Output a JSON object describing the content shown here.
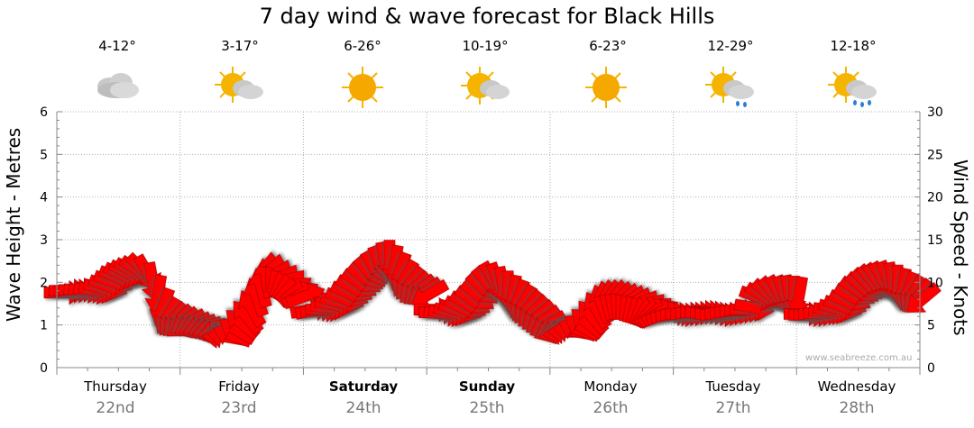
{
  "title": "7 day wind & wave forecast for Black Hills",
  "credit": "www.seabreeze.com.au",
  "colors": {
    "arrow": "#ff0000",
    "arrow_outline": "#b00000",
    "sun": "#f4b400",
    "cloud": "#d0d0d0",
    "rain": "#2a7fd4"
  },
  "days": [
    {
      "day": "Thursday",
      "date": "22nd",
      "temp": "4-12°",
      "icon": "cloudy-icon",
      "bold": false
    },
    {
      "day": "Friday",
      "date": "23rd",
      "temp": "3-17°",
      "icon": "partly-cloudy-icon",
      "bold": false
    },
    {
      "day": "Saturday",
      "date": "24th",
      "temp": "6-26°",
      "icon": "sunny-icon",
      "bold": true
    },
    {
      "day": "Sunday",
      "date": "25th",
      "temp": "10-19°",
      "icon": "partly-cloudy-icon",
      "bold": true
    },
    {
      "day": "Monday",
      "date": "26th",
      "temp": "6-23°",
      "icon": "sunny-icon",
      "bold": false
    },
    {
      "day": "Tuesday",
      "date": "27th",
      "temp": "12-29°",
      "icon": "shower-icon",
      "bold": false
    },
    {
      "day": "Wednesday",
      "date": "28th",
      "temp": "12-18°",
      "icon": "rain-icon",
      "bold": false
    }
  ],
  "chart_data": {
    "type": "line",
    "title": "7 day wind & wave forecast for Black Hills",
    "ylabel": "Wave Height - Metres",
    "y2label": "Wind Speed - Knots",
    "ylim": [
      0,
      6
    ],
    "y2lim": [
      0,
      30
    ],
    "yticks": [
      "0",
      "1",
      "2",
      "3",
      "4",
      "5",
      "6"
    ],
    "y2ticks": [
      "0",
      "5",
      "10",
      "15",
      "20",
      "25",
      "30"
    ],
    "categories": [
      "Thursday 22nd",
      "Friday 23rd",
      "Saturday 24th",
      "Sunday 25th",
      "Monday 26th",
      "Tuesday 27th",
      "Wednesday 28th"
    ],
    "grid": true,
    "series": [
      {
        "kind": "wind-arrows",
        "x_day": [
          0.0,
          0.04,
          0.08,
          0.12,
          0.16,
          0.2,
          0.24,
          0.28,
          0.32,
          0.36,
          0.4,
          0.44,
          0.48,
          0.52,
          0.56,
          0.6,
          0.64,
          0.68,
          0.72,
          0.76,
          0.8,
          0.84,
          0.88,
          0.92,
          0.96,
          1.0,
          1.04,
          1.08,
          1.12,
          1.16,
          1.2,
          1.24,
          1.28,
          1.32,
          1.36,
          1.4,
          1.44,
          1.48,
          1.52,
          1.56,
          1.6,
          1.64,
          1.68,
          1.72,
          1.76,
          1.8,
          1.84,
          1.88,
          1.92,
          1.96,
          2.0,
          2.04,
          2.08,
          2.12,
          2.16,
          2.2,
          2.24,
          2.28,
          2.32,
          2.36,
          2.4,
          2.44,
          2.48,
          2.52,
          2.56,
          2.6,
          2.64,
          2.68,
          2.72,
          2.76,
          2.8,
          2.84,
          2.88,
          2.92,
          2.96,
          3.0,
          3.04,
          3.08,
          3.12,
          3.16,
          3.2,
          3.24,
          3.28,
          3.32,
          3.36,
          3.4,
          3.44,
          3.48,
          3.52,
          3.56,
          3.6,
          3.64,
          3.68,
          3.72,
          3.76,
          3.8,
          3.84,
          3.88,
          3.92,
          3.96,
          4.0,
          4.04,
          4.08,
          4.12,
          4.16,
          4.2,
          4.24,
          4.28,
          4.32,
          4.36,
          4.4,
          4.44,
          4.48,
          4.52,
          4.56,
          4.6,
          4.64,
          4.68,
          4.72,
          4.76,
          4.8,
          4.84,
          4.88,
          4.92,
          4.96,
          5.0,
          5.04,
          5.08,
          5.12,
          5.16,
          5.2,
          5.24,
          5.28,
          5.32,
          5.36,
          5.4,
          5.44,
          5.48,
          5.52,
          5.56,
          5.6,
          5.64,
          5.68,
          5.72,
          5.76,
          5.8,
          5.84,
          5.88,
          5.92,
          5.96,
          6.0,
          6.04,
          6.08,
          6.12,
          6.16,
          6.2,
          6.24,
          6.28,
          6.32,
          6.36,
          6.4,
          6.44,
          6.48,
          6.52,
          6.56,
          6.6,
          6.64,
          6.68,
          6.72,
          6.76,
          6.8,
          6.84,
          6.88,
          6.92,
          6.96
        ],
        "speed_knots": [
          8.8,
          9.0,
          9.0,
          9.1,
          9.0,
          9.0,
          8.9,
          9.0,
          9.2,
          9.5,
          10.0,
          10.5,
          10.8,
          11.0,
          11.2,
          11.3,
          11.4,
          11.0,
          10.0,
          8.5,
          7.0,
          6.0,
          5.6,
          5.4,
          5.2,
          5.2,
          5.0,
          4.9,
          4.8,
          4.6,
          4.4,
          4.2,
          3.7,
          3.6,
          3.8,
          4.4,
          5.2,
          6.0,
          7.0,
          8.3,
          9.4,
          10.5,
          11.2,
          11.0,
          10.4,
          10.0,
          9.6,
          9.0,
          8.6,
          8.4,
          6.8,
          6.7,
          6.7,
          6.8,
          7.0,
          7.3,
          7.6,
          8.0,
          8.6,
          9.2,
          9.8,
          10.4,
          11.0,
          11.5,
          12.0,
          12.4,
          12.6,
          12.0,
          11.2,
          10.4,
          9.8,
          9.3,
          9.0,
          8.8,
          8.6,
          6.8,
          6.5,
          6.3,
          6.3,
          6.4,
          6.6,
          6.9,
          7.3,
          7.8,
          8.4,
          9.2,
          9.8,
          10.2,
          10.0,
          9.5,
          9.0,
          8.5,
          8.0,
          7.5,
          7.0,
          6.5,
          6.0,
          5.5,
          5.0,
          4.5,
          4.3,
          4.2,
          4.2,
          4.3,
          4.5,
          4.8,
          5.3,
          6.0,
          6.8,
          7.5,
          7.9,
          8.0,
          8.0,
          8.0,
          7.8,
          7.6,
          7.4,
          7.2,
          7.0,
          6.8,
          6.6,
          6.5,
          6.3,
          6.2,
          6.2,
          6.2,
          6.3,
          6.3,
          6.4,
          6.5,
          6.5,
          6.4,
          6.3,
          6.2,
          6.3,
          6.4,
          6.5,
          6.6,
          6.7,
          6.8,
          7.0,
          8.2,
          8.3,
          8.5,
          8.6,
          8.6,
          8.5,
          8.5,
          8.4,
          8.3,
          6.3,
          6.2,
          6.2,
          6.3,
          6.4,
          6.5,
          6.6,
          6.8,
          7.1,
          7.6,
          8.2,
          8.9,
          9.3,
          9.7,
          10.0,
          10.1,
          10.2,
          10.2,
          10.0,
          9.7,
          9.3,
          8.9,
          8.6,
          8.3,
          8.0
        ],
        "direction_deg": [
          90,
          90,
          90,
          90,
          95,
          95,
          100,
          100,
          105,
          110,
          110,
          112,
          115,
          118,
          120,
          125,
          135,
          150,
          170,
          190,
          200,
          210,
          220,
          225,
          230,
          240,
          245,
          250,
          255,
          255,
          260,
          260,
          270,
          280,
          290,
          300,
          310,
          320,
          330,
          340,
          345,
          350,
          0,
          10,
          20,
          30,
          40,
          50,
          60,
          70,
          80,
          80,
          85,
          90,
          95,
          100,
          105,
          110,
          115,
          120,
          125,
          130,
          140,
          150,
          160,
          170,
          180,
          190,
          200,
          210,
          220,
          225,
          230,
          235,
          240,
          90,
          90,
          95,
          100,
          105,
          110,
          115,
          120,
          125,
          130,
          135,
          140,
          150,
          160,
          170,
          180,
          190,
          200,
          210,
          220,
          225,
          230,
          235,
          240,
          245,
          250,
          260,
          270,
          280,
          290,
          300,
          310,
          320,
          330,
          340,
          345,
          350,
          355,
          0,
          5,
          10,
          15,
          20,
          30,
          40,
          50,
          60,
          70,
          80,
          85,
          90,
          90,
          90,
          90,
          90,
          90,
          90,
          90,
          90,
          90,
          90,
          90,
          90,
          90,
          90,
          100,
          110,
          120,
          130,
          140,
          150,
          160,
          170,
          180,
          190,
          90,
          90,
          90,
          90,
          90,
          95,
          100,
          105,
          110,
          115,
          120,
          125,
          130,
          135,
          140,
          145,
          150,
          160,
          170,
          180,
          190,
          200,
          210,
          220,
          230
        ]
      }
    ]
  }
}
